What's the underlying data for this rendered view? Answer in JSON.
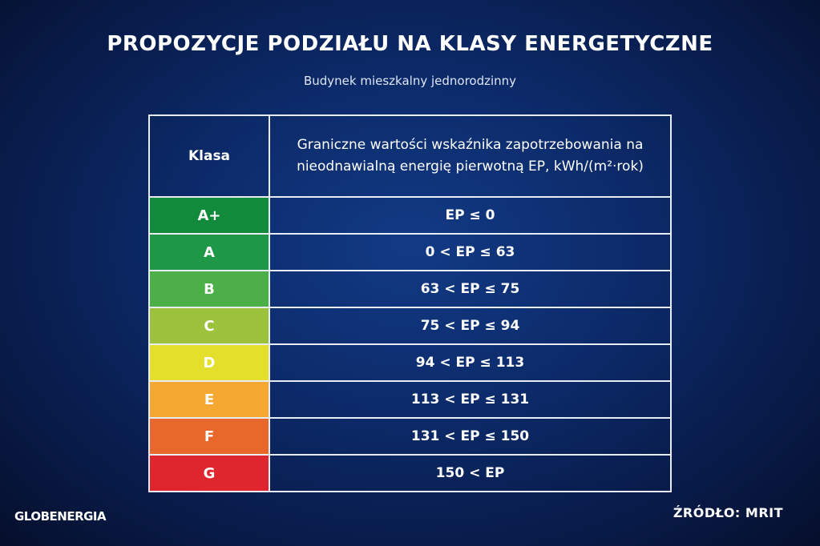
{
  "title": "PROPOZYCJE PODZIAŁU NA KLASY ENERGETYCZNE",
  "subtitle": "Budynek mieszkalny jednorodzinny",
  "table": {
    "headers": [
      "Klasa",
      "Graniczne wartości wskaźnika zapotrzebowania na nieodnawialną energię pierwotną EP, kWh/(m²·rok)"
    ],
    "rows": [
      {
        "class": "A+",
        "range": "EP ≤ 0",
        "color": "#128a3c"
      },
      {
        "class": "A",
        "range": "0 < EP ≤ 63",
        "color": "#1e9746"
      },
      {
        "class": "B",
        "range": "63 < EP ≤ 75",
        "color": "#4daf48"
      },
      {
        "class": "C",
        "range": "75 < EP ≤ 94",
        "color": "#9cc13c"
      },
      {
        "class": "D",
        "range": "94 < EP ≤ 113",
        "color": "#e3df2a"
      },
      {
        "class": "E",
        "range": "113 < EP ≤ 131",
        "color": "#f4a831"
      },
      {
        "class": "F",
        "range": "131 < EP ≤ 150",
        "color": "#e8672a"
      },
      {
        "class": "G",
        "range": "150 < EP",
        "color": "#df262e"
      }
    ]
  },
  "footer": {
    "logo": "GLOBENERGIA",
    "source": "ŹRÓDŁO: MRIT"
  }
}
